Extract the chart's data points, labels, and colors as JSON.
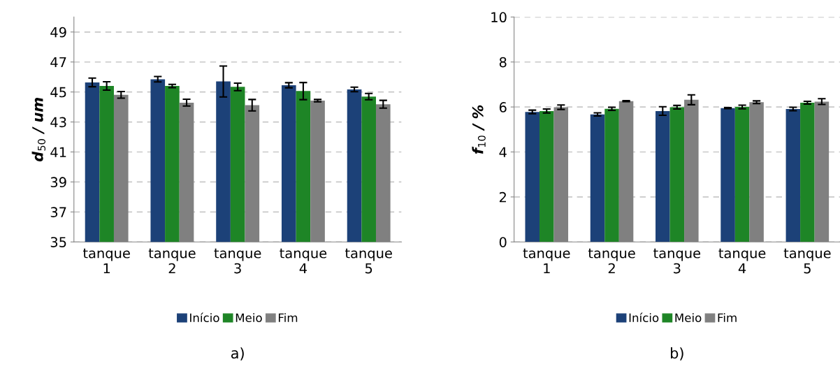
{
  "chart_data": [
    {
      "type": "bar",
      "categories": [
        "tanque\n1",
        "tanque\n2",
        "tanque\n3",
        "tanque\n4",
        "tanque\n5"
      ],
      "ylabel": "d$_{50}$ / um",
      "ylim": [
        35,
        50
      ],
      "yticks": [
        35,
        37,
        39,
        41,
        43,
        45,
        47,
        49
      ],
      "grid": "y",
      "legend": "bottom",
      "annotations": [
        "a)"
      ],
      "series": [
        {
          "name": "Início",
          "color": "#1c4178",
          "values": [
            45.64,
            45.85,
            45.7,
            45.45,
            45.17
          ],
          "errors": [
            0.29,
            0.18,
            1.03,
            0.17,
            0.15
          ]
        },
        {
          "name": "Meio",
          "color": "#1e8526",
          "values": [
            45.4,
            45.4,
            45.34,
            45.06,
            44.69
          ],
          "errors": [
            0.28,
            0.11,
            0.25,
            0.57,
            0.21
          ]
        },
        {
          "name": "Fim",
          "color": "#808080",
          "values": [
            44.81,
            44.29,
            44.12,
            44.42,
            44.18
          ],
          "errors": [
            0.22,
            0.23,
            0.38,
            0.08,
            0.26
          ]
        }
      ]
    },
    {
      "type": "bar",
      "categories": [
        "tanque\n1",
        "tanque\n2",
        "tanque\n3",
        "tanque\n4",
        "tanque\n5"
      ],
      "ylabel": "f$_{10}$ / %",
      "ylim": [
        0,
        10
      ],
      "yticks": [
        0,
        2,
        4,
        6,
        8,
        10
      ],
      "grid": "y",
      "legend": "bottom",
      "annotations": [
        "b)"
      ],
      "series": [
        {
          "name": "Início",
          "color": "#1c4178",
          "values": [
            5.78,
            5.67,
            5.82,
            5.95,
            5.91
          ],
          "errors": [
            0.08,
            0.07,
            0.19,
            0.02,
            0.08
          ]
        },
        {
          "name": "Meio",
          "color": "#1e8526",
          "values": [
            5.82,
            5.92,
            5.99,
            6.0,
            6.19
          ],
          "errors": [
            0.09,
            0.07,
            0.08,
            0.08,
            0.06
          ]
        },
        {
          "name": "Fim",
          "color": "#808080",
          "values": [
            5.99,
            6.26,
            6.32,
            6.21,
            6.24
          ],
          "errors": [
            0.1,
            0.02,
            0.22,
            0.06,
            0.13
          ]
        }
      ]
    }
  ]
}
